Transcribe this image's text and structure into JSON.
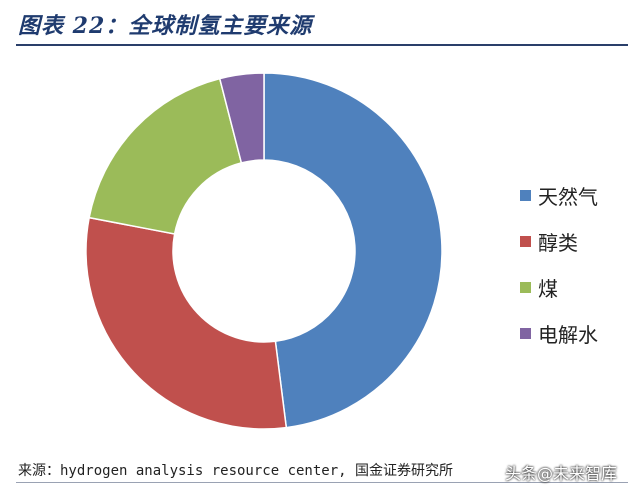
{
  "title": "图表 22：全球制氢主要来源",
  "source": "来源：hydrogen analysis resource center, 国金证券研究所",
  "watermark": "头条@未来智库",
  "chart_data": {
    "type": "pie",
    "donut": true,
    "categories": [
      "天然气",
      "醇类",
      "煤",
      "电解水"
    ],
    "values": [
      48,
      30,
      18,
      4
    ],
    "unit": "%",
    "colors": [
      "#4f81bd",
      "#c0504d",
      "#9bbb59",
      "#8064a2"
    ],
    "start_angle_deg": 0,
    "direction": "clockwise",
    "legend_position": "right"
  }
}
